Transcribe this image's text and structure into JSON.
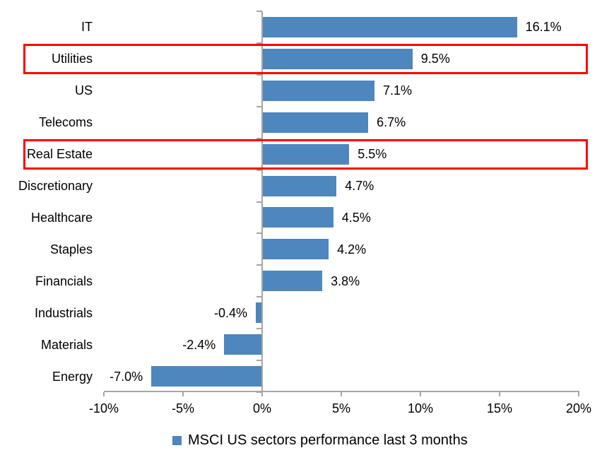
{
  "chart_data": {
    "type": "bar",
    "orientation": "horizontal",
    "categories": [
      "IT",
      "Utilities",
      "US",
      "Telecoms",
      "Real Estate",
      "Discretionary",
      "Healthcare",
      "Staples",
      "Financials",
      "Industrials",
      "Materials",
      "Energy"
    ],
    "values": [
      16.1,
      9.5,
      7.1,
      6.7,
      5.5,
      4.7,
      4.5,
      4.2,
      3.8,
      -0.4,
      -2.4,
      -7.0
    ],
    "data_labels": [
      "16.1%",
      "9.5%",
      "7.1%",
      "6.7%",
      "5.5%",
      "4.7%",
      "4.5%",
      "4.2%",
      "3.8%",
      "-0.4%",
      "-2.4%",
      "-7.0%"
    ],
    "highlighted_categories": [
      "Utilities",
      "Real Estate"
    ],
    "x_ticks": [
      {
        "value": -10,
        "label": "-10%"
      },
      {
        "value": -5,
        "label": "-5%"
      },
      {
        "value": 0,
        "label": "0%"
      },
      {
        "value": 5,
        "label": "5%"
      },
      {
        "value": 10,
        "label": "10%"
      },
      {
        "value": 15,
        "label": "15%"
      },
      {
        "value": 20,
        "label": "20%"
      }
    ],
    "xlim": [
      -10,
      20
    ],
    "grid": false,
    "legend": {
      "label": "MSCI US sectors performance last 3 months",
      "position": "bottom"
    },
    "colors": {
      "bar": "#4E86BE",
      "highlight_box": "#FF0000",
      "axis": "#A6A6A6",
      "text": "#000000"
    }
  }
}
